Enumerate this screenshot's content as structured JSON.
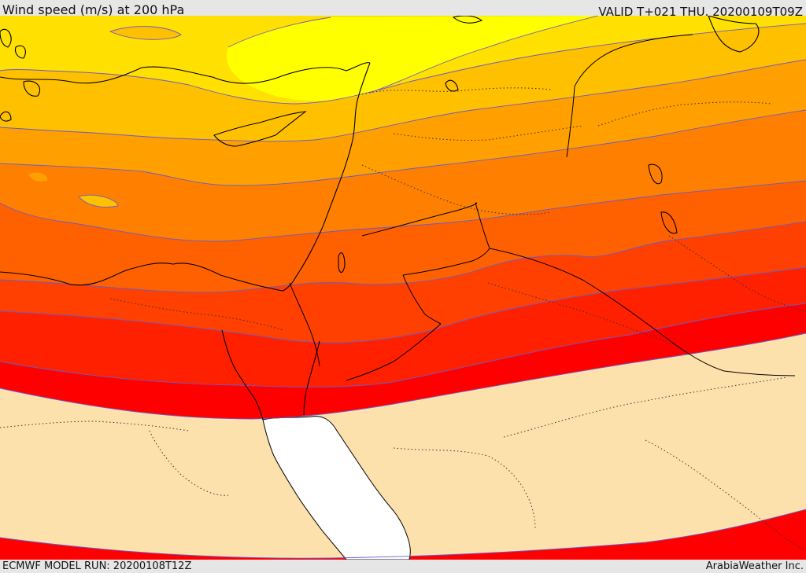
{
  "header": {
    "title": "Wind speed (m/s) at 200 hPa",
    "valid": "VALID T+021 THU. 20200109T09Z"
  },
  "footer": {
    "model_run": "ECMWF MODEL RUN: 20200108T12Z",
    "credit": "ArabiaWeather Inc."
  },
  "map": {
    "variable": "wind speed",
    "pressure_level_hpa": 200,
    "units": "m/s",
    "band_colors": [
      "#ffff00",
      "#ffe000",
      "#ffc000",
      "#ffa000",
      "#ff8000",
      "#ff6000",
      "#ff4000",
      "#ff2000",
      "#ff0000",
      "#fde1ac",
      "#ffffff"
    ],
    "contour_color": "#6a5acd",
    "coastline_color": "#000000"
  }
}
